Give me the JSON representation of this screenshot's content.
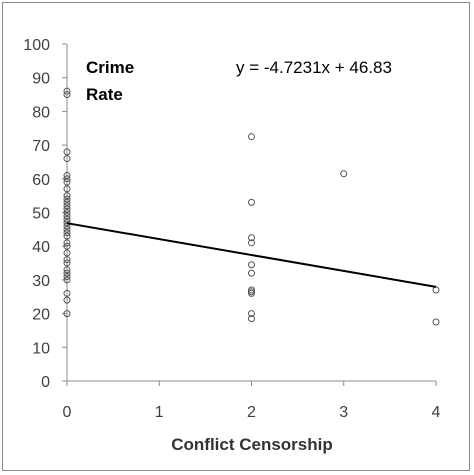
{
  "chart_data": {
    "type": "scatter",
    "title": "",
    "ylabel_text": [
      "Crime",
      "Rate"
    ],
    "xlabel": "Conflict Censorship",
    "equation": "y = -4.7231x + 46.83",
    "xlim": [
      0,
      4
    ],
    "ylim": [
      0,
      100
    ],
    "x_ticks": [
      "0",
      "1",
      "2",
      "3",
      "4"
    ],
    "y_ticks": [
      "0",
      "10",
      "20",
      "30",
      "40",
      "50",
      "60",
      "70",
      "80",
      "90",
      "100"
    ],
    "grid": false,
    "trendline": {
      "slope": -4.7231,
      "intercept": 46.83,
      "x_range": [
        0,
        4
      ]
    },
    "points": [
      [
        0,
        86
      ],
      [
        0,
        85
      ],
      [
        0,
        68
      ],
      [
        0,
        66
      ],
      [
        0,
        61
      ],
      [
        0,
        60
      ],
      [
        0,
        59
      ],
      [
        0,
        57
      ],
      [
        0,
        55
      ],
      [
        0,
        54
      ],
      [
        0,
        53
      ],
      [
        0,
        52
      ],
      [
        0,
        51
      ],
      [
        0,
        50
      ],
      [
        0,
        49
      ],
      [
        0,
        48
      ],
      [
        0,
        47
      ],
      [
        0,
        46
      ],
      [
        0,
        45
      ],
      [
        0,
        44
      ],
      [
        0,
        43
      ],
      [
        0,
        41
      ],
      [
        0,
        40
      ],
      [
        0,
        38
      ],
      [
        0,
        36
      ],
      [
        0,
        35
      ],
      [
        0,
        33
      ],
      [
        0,
        32
      ],
      [
        0,
        31
      ],
      [
        0,
        30
      ],
      [
        0,
        26
      ],
      [
        0,
        24
      ],
      [
        0,
        20
      ],
      [
        2,
        72.5
      ],
      [
        2,
        53
      ],
      [
        2,
        42.5
      ],
      [
        2,
        41
      ],
      [
        2,
        34.5
      ],
      [
        2,
        32
      ],
      [
        2,
        27
      ],
      [
        2,
        26.5
      ],
      [
        2,
        26
      ],
      [
        2,
        20
      ],
      [
        2,
        18.5
      ],
      [
        3,
        61.5
      ],
      [
        4,
        27
      ],
      [
        4,
        17.5
      ]
    ]
  }
}
